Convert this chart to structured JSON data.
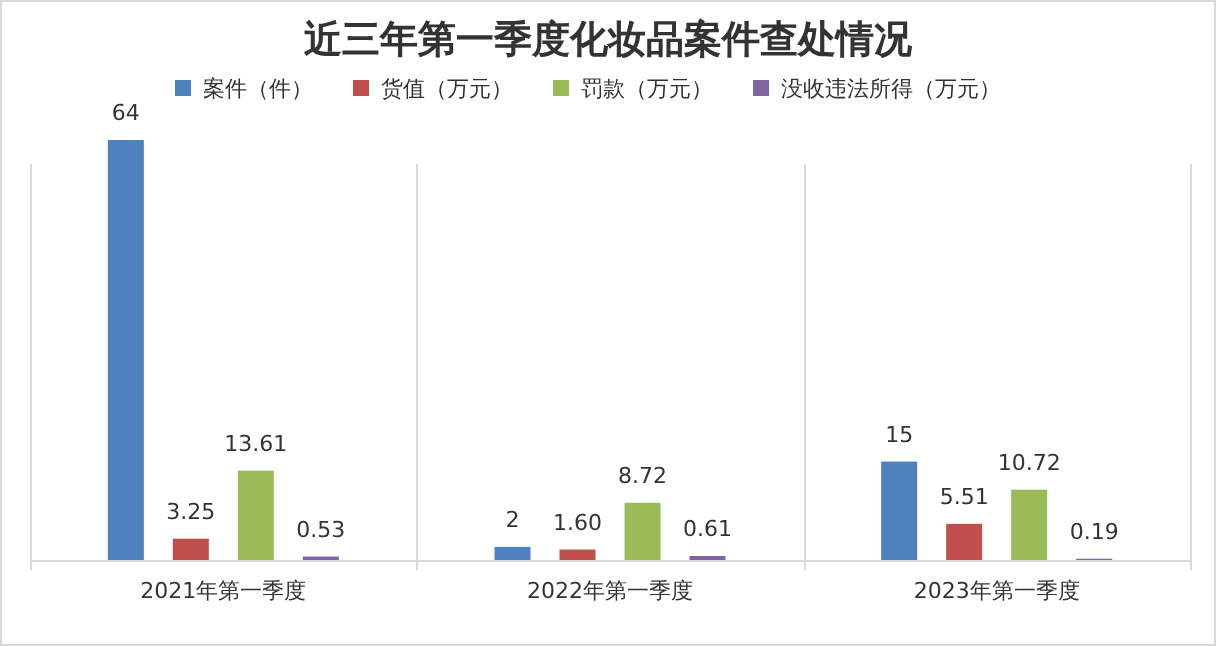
{
  "chart_data": {
    "type": "bar",
    "title": "近三年第一季度化妆品案件查处情况",
    "categories": [
      "2021年第一季度",
      "2022年第一季度",
      "2023年第一季度"
    ],
    "series": [
      {
        "name": "案件（件）",
        "color": "#4f81bd",
        "values": [
          64,
          2,
          15
        ]
      },
      {
        "name": "货值（万元）",
        "color": "#c0504d",
        "values": [
          3.25,
          1.6,
          5.51
        ],
        "value_labels": [
          "3.25",
          "1.60",
          "5.51"
        ]
      },
      {
        "name": "罚款（万元）",
        "color": "#9bbb59",
        "values": [
          13.61,
          8.72,
          10.72
        ],
        "value_labels": [
          "13.61",
          "8.72",
          "10.72"
        ]
      },
      {
        "name": "没收违法所得（万元）",
        "color": "#8064a2",
        "values": [
          0.53,
          0.61,
          0.19
        ],
        "value_labels": [
          "0.53",
          "0.61",
          "0.19"
        ]
      }
    ],
    "data_labels": true,
    "legend": "top",
    "grid": false
  }
}
